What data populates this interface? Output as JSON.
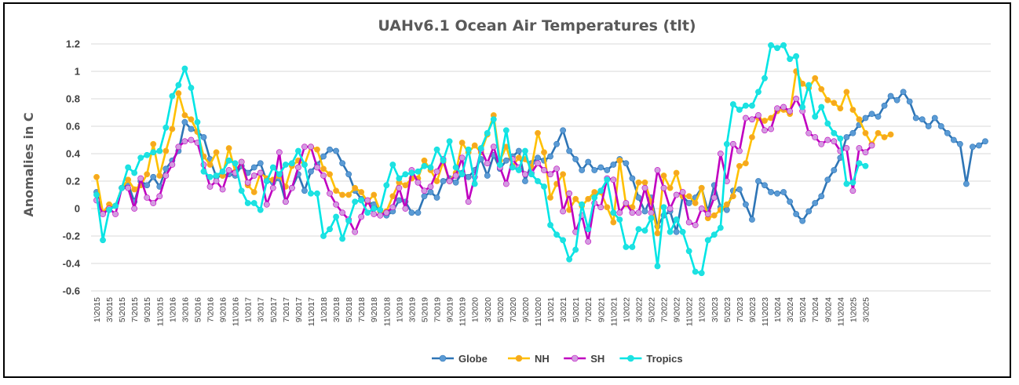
{
  "colors": {
    "Globe": "#2e75b6",
    "NH": "#ffc000",
    "SH": "#c000c0",
    "Tropics": "#00e5e5"
  },
  "marker_colors": {
    "Globe": "#5b9bd5",
    "NH": "#f5a623",
    "SH": "#d39be0",
    "Tropics": "#20e0e0"
  },
  "chart_data": {
    "type": "line",
    "title": "UAHv6.1 Ocean Air Temperatures (tlt)",
    "xlabel": "",
    "ylabel": "Anomalies in C",
    "ylim": [
      -0.6,
      1.2
    ],
    "yticks": [
      "1.2",
      "1",
      "0.8",
      "0.6",
      "0.4",
      "0.2",
      "0",
      "-0.2",
      "-0.4",
      "-0.6"
    ],
    "grid": true,
    "legend_position": "bottom",
    "x_tick_labels": [
      "1\\2015",
      "3\\2015",
      "5\\2015",
      "7\\2015",
      "9\\2015",
      "11\\2015",
      "1\\2016",
      "3\\2016",
      "5\\2016",
      "7\\2016",
      "9\\2016",
      "11\\2016",
      "1\\2017",
      "3\\2017",
      "5\\2017",
      "7\\2017",
      "9\\2017",
      "11\\2017",
      "1\\2018",
      "3\\2018",
      "5\\2018",
      "7\\2018",
      "9\\2018",
      "11\\2018",
      "1\\2019",
      "3\\2019",
      "5\\2019",
      "7\\2019",
      "9\\2019",
      "11\\2019",
      "1\\2020",
      "3\\2020",
      "5\\2020",
      "7\\2020",
      "9\\2020",
      "11\\2020",
      "1\\2021",
      "3\\2021",
      "5\\2021",
      "7\\2021",
      "9\\2021",
      "11\\2021",
      "1\\2022",
      "3\\2022",
      "5\\2022",
      "7\\2022",
      "9\\2022",
      "11\\2022",
      "1\\2023",
      "3\\2023",
      "5\\2023",
      "7\\2023",
      "9\\2023",
      "11\\2023",
      "1\\2024",
      "3\\2024",
      "5\\2024",
      "7\\2024",
      "9\\2024",
      "11\\2024",
      "1\\2025",
      "3\\2025"
    ],
    "series": [
      {
        "name": "Globe",
        "values": [
          0.12,
          -0.03,
          0.0,
          0.02,
          0.15,
          0.18,
          0.05,
          0.2,
          0.17,
          0.23,
          0.16,
          0.29,
          0.35,
          0.42,
          0.63,
          0.58,
          0.56,
          0.52,
          0.36,
          0.23,
          0.24,
          0.25,
          0.24,
          0.31,
          0.26,
          0.3,
          0.33,
          0.2,
          0.19,
          0.22,
          0.05,
          0.15,
          0.25,
          0.13,
          0.27,
          0.32,
          0.38,
          0.43,
          0.42,
          0.33,
          0.25,
          0.13,
          0.07,
          0.05,
          0.03,
          -0.02,
          -0.05,
          -0.02,
          0.06,
          0.05,
          -0.03,
          -0.03,
          0.09,
          0.12,
          0.08,
          0.2,
          0.22,
          0.19,
          0.26,
          0.23,
          0.28,
          0.36,
          0.24,
          0.39,
          0.29,
          0.35,
          0.38,
          0.42,
          0.2,
          0.33,
          0.37,
          0.35,
          0.38,
          0.47,
          0.57,
          0.42,
          0.36,
          0.28,
          0.34,
          0.28,
          0.3,
          0.28,
          0.32,
          0.36,
          0.33,
          0.22,
          0.08,
          -0.02,
          0.08,
          -0.13,
          -0.05,
          -0.02,
          -0.17,
          0.09,
          0.04,
          0.08,
          0.15,
          -0.02,
          0.17,
          0.01,
          -0.01,
          0.13,
          0.14,
          0.03,
          -0.08,
          0.2,
          0.17,
          0.12,
          0.11,
          0.12,
          0.05,
          -0.04,
          -0.09,
          -0.02,
          0.04,
          0.09,
          0.21,
          0.28,
          0.37,
          0.52,
          0.55,
          0.61,
          0.66,
          0.69,
          0.67,
          0.75,
          0.82,
          0.79,
          0.85,
          0.78,
          0.66,
          0.65,
          0.6,
          0.66,
          0.6,
          0.55,
          0.5,
          0.47,
          0.18,
          0.45,
          0.46,
          0.49
        ]
      },
      {
        "name": "NH",
        "values": [
          0.23,
          -0.03,
          0.03,
          0.02,
          0.15,
          0.21,
          0.14,
          0.17,
          0.25,
          0.47,
          0.24,
          0.42,
          0.58,
          0.84,
          0.68,
          0.65,
          0.56,
          0.38,
          0.32,
          0.41,
          0.24,
          0.44,
          0.27,
          0.34,
          0.17,
          0.12,
          0.26,
          0.22,
          0.21,
          0.24,
          0.16,
          0.31,
          0.35,
          0.32,
          0.45,
          0.43,
          0.29,
          0.25,
          0.13,
          0.1,
          0.1,
          0.15,
          0.12,
          0.05,
          0.1,
          -0.02,
          -0.02,
          0.09,
          0.19,
          0.17,
          0.22,
          0.22,
          0.35,
          0.28,
          0.2,
          0.34,
          0.2,
          0.26,
          0.48,
          0.41,
          0.46,
          0.41,
          0.54,
          0.68,
          0.35,
          0.45,
          0.31,
          0.37,
          0.36,
          0.3,
          0.55,
          0.41,
          0.08,
          0.18,
          0.25,
          -0.01,
          0.07,
          0.02,
          0.07,
          0.12,
          0.12,
          0.01,
          -0.1,
          0.35,
          0.03,
          0.01,
          0.19,
          0.19,
          0.05,
          -0.18,
          0.24,
          0.15,
          0.26,
          0.09,
          0.09,
          0.04,
          0.15,
          -0.07,
          -0.05,
          -0.01,
          0.03,
          0.09,
          0.31,
          0.33,
          0.52,
          0.66,
          0.64,
          0.66,
          0.71,
          0.72,
          0.69,
          1.0,
          0.91,
          0.88,
          0.95,
          0.87,
          0.79,
          0.77,
          0.73,
          0.85,
          0.72,
          0.65,
          0.55,
          0.47,
          0.55,
          0.52,
          0.54
        ]
      },
      {
        "name": "SH",
        "values": [
          0.06,
          -0.04,
          0.0,
          -0.04,
          0.15,
          0.15,
          0.0,
          0.22,
          0.08,
          0.04,
          0.09,
          0.24,
          0.32,
          0.45,
          0.49,
          0.5,
          0.48,
          0.32,
          0.16,
          0.2,
          0.14,
          0.28,
          0.26,
          0.34,
          0.19,
          0.24,
          0.26,
          0.03,
          0.15,
          0.41,
          0.05,
          0.15,
          0.3,
          0.45,
          0.45,
          0.3,
          0.24,
          0.11,
          0.03,
          -0.03,
          -0.08,
          -0.17,
          -0.06,
          0.06,
          -0.04,
          -0.05,
          -0.03,
          0.01,
          0.15,
          0.0,
          0.28,
          0.19,
          0.13,
          0.16,
          0.27,
          0.36,
          0.2,
          0.24,
          0.37,
          0.05,
          0.23,
          0.43,
          0.33,
          0.45,
          0.3,
          0.18,
          0.36,
          0.3,
          0.25,
          0.26,
          0.33,
          0.28,
          0.25,
          0.29,
          -0.02,
          0.11,
          -0.17,
          -0.05,
          -0.24,
          0.04,
          0.01,
          0.22,
          0.21,
          -0.03,
          0.04,
          -0.03,
          -0.03,
          0.15,
          -0.03,
          0.28,
          0.15,
          0.0,
          0.1,
          0.12,
          -0.1,
          -0.12,
          0.0,
          -0.04,
          0.08,
          0.4,
          0.2,
          0.47,
          0.42,
          0.66,
          0.65,
          0.68,
          0.57,
          0.58,
          0.73,
          0.74,
          0.71,
          0.8,
          0.71,
          0.55,
          0.52,
          0.47,
          0.5,
          0.49,
          0.42,
          0.44,
          0.13,
          0.44,
          0.41,
          0.46
        ]
      },
      {
        "name": "Tropics",
        "values": [
          0.1,
          -0.23,
          -0.01,
          0.02,
          0.15,
          0.3,
          0.26,
          0.37,
          0.39,
          0.41,
          0.42,
          0.59,
          0.82,
          0.9,
          1.02,
          0.88,
          0.63,
          0.27,
          0.23,
          0.24,
          0.27,
          0.35,
          0.33,
          0.13,
          0.04,
          0.04,
          -0.01,
          0.2,
          0.3,
          0.25,
          0.32,
          0.33,
          0.42,
          0.32,
          0.11,
          0.11,
          -0.2,
          -0.15,
          -0.06,
          -0.22,
          -0.09,
          0.05,
          0.06,
          -0.03,
          0.0,
          -0.01,
          0.17,
          0.32,
          0.22,
          0.25,
          0.26,
          0.27,
          0.31,
          0.3,
          0.43,
          0.35,
          0.49,
          0.3,
          0.25,
          0.43,
          0.18,
          0.44,
          0.55,
          0.65,
          0.32,
          0.57,
          0.3,
          0.28,
          0.42,
          0.25,
          0.2,
          0.16,
          -0.12,
          -0.19,
          -0.23,
          -0.37,
          -0.3,
          0.03,
          -0.15,
          0.08,
          0.13,
          0.21,
          -0.03,
          -0.08,
          -0.28,
          -0.28,
          -0.15,
          -0.16,
          -0.07,
          -0.42,
          0.01,
          -0.17,
          -0.08,
          -0.17,
          -0.31,
          -0.46,
          -0.47,
          -0.23,
          -0.19,
          -0.14,
          0.47,
          0.76,
          0.72,
          0.75,
          0.75,
          0.85,
          0.95,
          1.19,
          1.17,
          1.19,
          1.09,
          1.11,
          0.74,
          0.9,
          0.67,
          0.74,
          0.62,
          0.55,
          0.51,
          0.18,
          0.19,
          0.33,
          0.31
        ]
      }
    ]
  }
}
